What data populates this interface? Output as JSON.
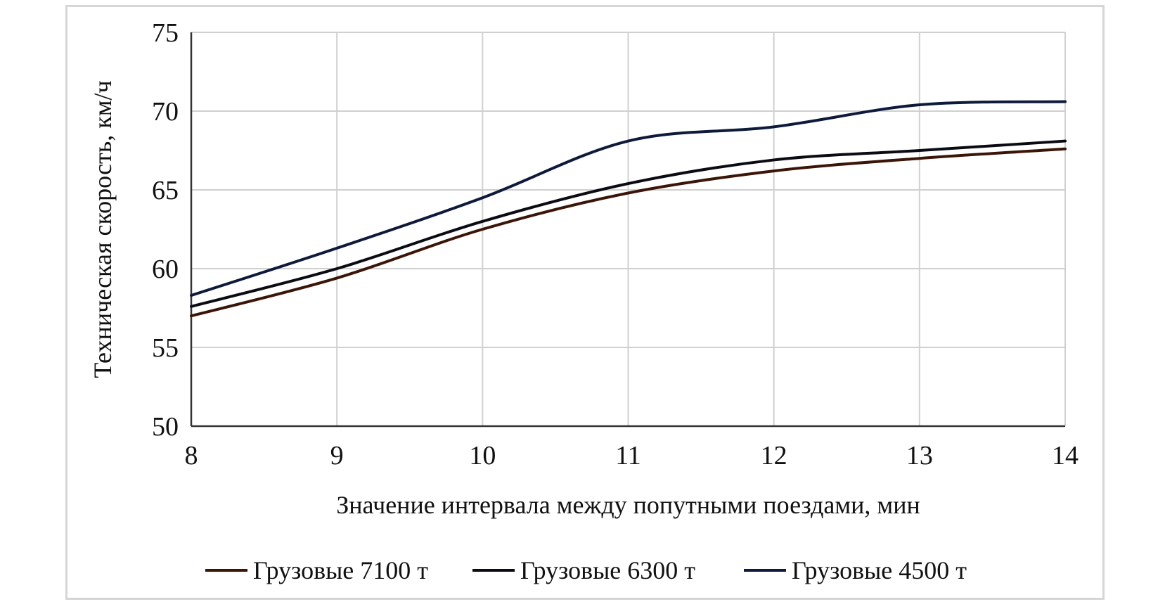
{
  "chart_data": {
    "type": "line",
    "xlabel": "Значение интервала между попутными поездами, мин",
    "ylabel": "Техническая скорость, км/ч",
    "xlim": [
      8,
      14
    ],
    "ylim": [
      50,
      75
    ],
    "x_ticks": [
      "8",
      "9",
      "10",
      "11",
      "12",
      "13",
      "14"
    ],
    "y_ticks": [
      "50",
      "55",
      "60",
      "65",
      "70",
      "75"
    ],
    "grid": true,
    "legend_position": "bottom",
    "x": [
      8,
      9,
      10,
      11,
      12,
      13,
      14
    ],
    "series": [
      {
        "name": "Грузовые 7100 т",
        "color": "#3a1508",
        "values": [
          57.0,
          59.4,
          62.5,
          64.8,
          66.2,
          67.0,
          67.6
        ]
      },
      {
        "name": "Грузовые 6300 т",
        "color": "#0b0b14",
        "values": [
          57.6,
          60.0,
          63.0,
          65.4,
          66.9,
          67.5,
          68.1
        ]
      },
      {
        "name": "Грузовые 4500 т",
        "color": "#0e1a3a",
        "values": [
          58.3,
          61.3,
          64.5,
          68.1,
          69.0,
          70.4,
          70.6
        ]
      }
    ]
  }
}
